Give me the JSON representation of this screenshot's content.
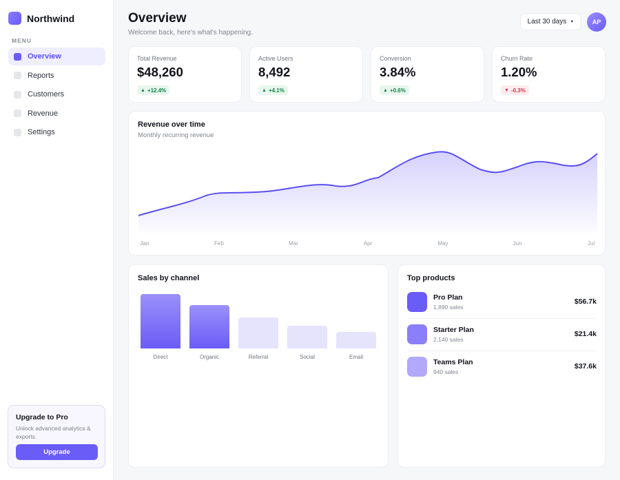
{
  "brand": {
    "name": "Northwind"
  },
  "sidebar": {
    "menu_label": "MENU",
    "items": [
      {
        "label": "Overview",
        "active": true
      },
      {
        "label": "Reports",
        "active": false
      },
      {
        "label": "Customers",
        "active": false
      },
      {
        "label": "Revenue",
        "active": false
      },
      {
        "label": "Settings",
        "active": false
      }
    ],
    "upgrade": {
      "title": "Upgrade to Pro",
      "description": "Unlock advanced analytics & exports.",
      "button_label": "Upgrade"
    }
  },
  "header": {
    "title": "Overview",
    "subtitle": "Welcome back, here's what's happening.",
    "range_select": "Last 30 days",
    "avatar_initials": "AP"
  },
  "kpis": [
    {
      "label": "Total Revenue",
      "value": "$48,260",
      "delta": "+12.4%",
      "direction": "up"
    },
    {
      "label": "Active Users",
      "value": "8,492",
      "delta": "+4.1%",
      "direction": "up"
    },
    {
      "label": "Conversion",
      "value": "3.84%",
      "delta": "+0.6%",
      "direction": "up"
    },
    {
      "label": "Churn Rate",
      "value": "1.20%",
      "delta": "-0.3%",
      "direction": "down"
    }
  ],
  "revenue_chart": {
    "title": "Revenue over time",
    "subtitle": "Monthly recurring revenue",
    "months": [
      "Jan",
      "Feb",
      "Mar",
      "Apr",
      "May",
      "Jun",
      "Jul"
    ]
  },
  "sales_chart": {
    "title": "Sales by channel",
    "channels": [
      "Direct",
      "Organic",
      "Referral",
      "Social",
      "Email"
    ]
  },
  "top_products": {
    "title": "Top products",
    "items": [
      {
        "name": "Pro Plan",
        "sales": "1,890 sales",
        "price": "$56.7k",
        "color": "#6a5cf6"
      },
      {
        "name": "Starter Plan",
        "sales": "2,140 sales",
        "price": "$21.4k",
        "color": "#8a7ff8"
      },
      {
        "name": "Teams Plan",
        "sales": "940 sales",
        "price": "$37.6k",
        "color": "#b2a9fa"
      }
    ]
  },
  "colors": {
    "accent": "#6a5cf6",
    "positive": "#17804a",
    "negative": "#d6334a"
  }
}
